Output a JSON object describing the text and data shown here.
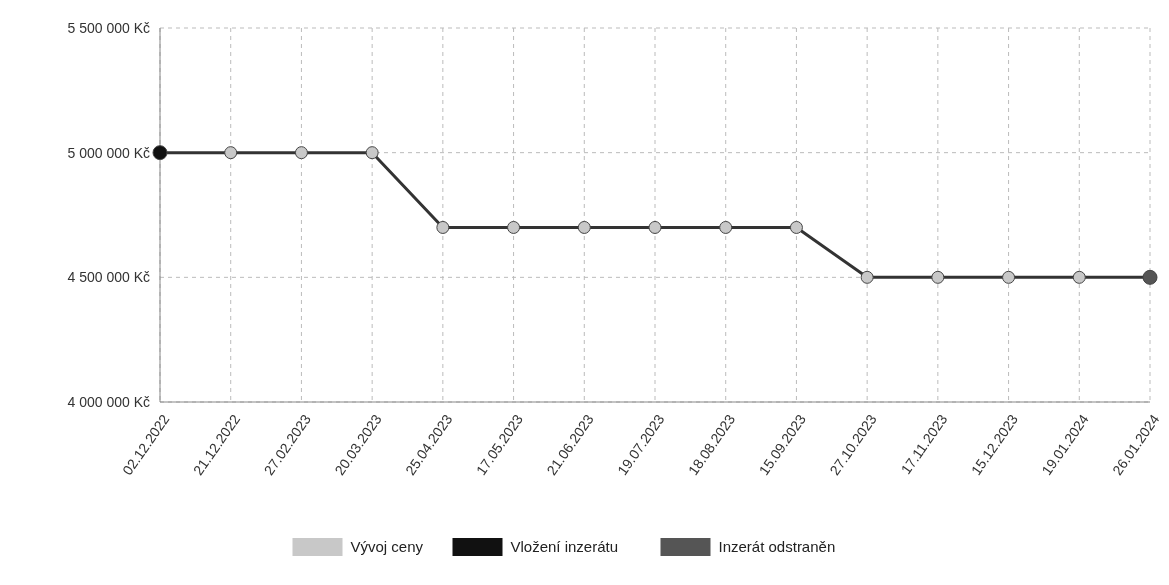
{
  "chart_data": {
    "type": "line",
    "categories": [
      "02.12.2022",
      "21.12.2022",
      "27.02.2023",
      "20.03.2023",
      "25.04.2023",
      "17.05.2023",
      "21.06.2023",
      "19.07.2023",
      "18.08.2023",
      "15.09.2023",
      "27.10.2023",
      "17.11.2023",
      "15.12.2023",
      "19.01.2024",
      "26.01.2024"
    ],
    "series": [
      {
        "name": "Vývoj ceny",
        "color": "#333333",
        "values": [
          5000000,
          5000000,
          5000000,
          5000000,
          4700000,
          4700000,
          4700000,
          4700000,
          4700000,
          4700000,
          4500000,
          4500000,
          4500000,
          4500000,
          4500000
        ]
      },
      {
        "name": "Vložení inzerátu",
        "type": "scatter",
        "color": "#111111",
        "values": [
          5000000,
          null,
          null,
          null,
          null,
          null,
          null,
          null,
          null,
          null,
          null,
          null,
          null,
          null,
          null
        ]
      },
      {
        "name": "Inzerát odstraněn",
        "type": "scatter",
        "color": "#555555",
        "values": [
          null,
          null,
          null,
          null,
          null,
          null,
          null,
          null,
          null,
          null,
          null,
          null,
          null,
          null,
          4500000
        ]
      }
    ],
    "ylim": [
      4000000,
      5500000
    ],
    "yticks": [
      {
        "value": 4000000,
        "label": "4 000 000 Kč"
      },
      {
        "value": 4500000,
        "label": "4 500 000 Kč"
      },
      {
        "value": 5000000,
        "label": "5 000 000 Kč"
      },
      {
        "value": 5500000,
        "label": "5 500 000 Kč"
      }
    ],
    "grid": true,
    "legend": "bottom",
    "marker": "circle",
    "line_style": "solid"
  }
}
